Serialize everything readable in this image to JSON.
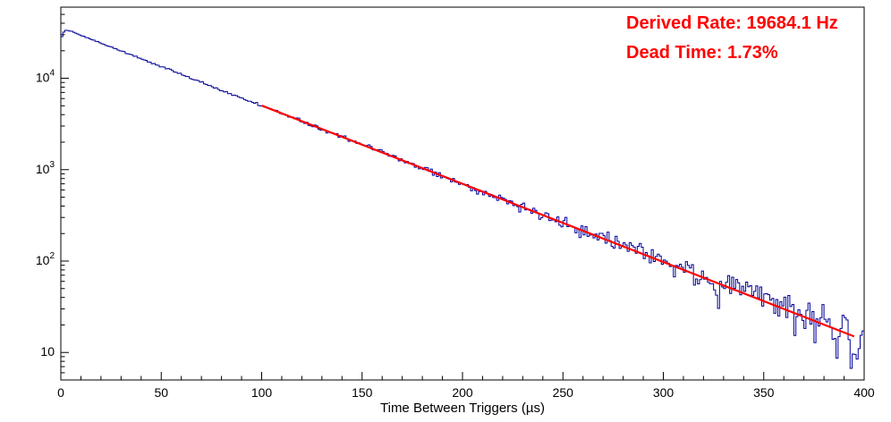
{
  "chart_data": {
    "type": "histogram",
    "title": "",
    "xlabel": "Time Between Triggers (µs)",
    "ylabel": "",
    "x_scale": "linear",
    "y_scale": "log",
    "xlim": [
      0,
      400
    ],
    "ylim": [
      5,
      60000
    ],
    "x_ticks": [
      0,
      50,
      100,
      150,
      200,
      250,
      300,
      350,
      400
    ],
    "x_minor_tick_step": 10,
    "y_ticks": [
      10,
      100,
      1000,
      10000
    ],
    "grid": false,
    "legend": false,
    "histogram": {
      "color": "#000099",
      "bin_width_us": 1,
      "model": "counts(t) = amplitude * exp(-decay_rate * t)",
      "amplitude": 36000,
      "decay_rate_per_us": 0.0196841,
      "turn_on_bins": [
        0.8,
        0.92,
        0.98
      ],
      "sampled_points": {
        "x": [
          0,
          25,
          50,
          75,
          100,
          125,
          150,
          175,
          200,
          225,
          250,
          275,
          300,
          325,
          350,
          375,
          400
        ],
        "y": [
          36000,
          22000,
          13450,
          8220,
          5030,
          3075,
          1880,
          1150,
          702,
          429,
          262,
          160,
          98,
          60,
          37,
          22,
          14
        ]
      }
    },
    "fit": {
      "color": "#ff0000",
      "shape": "exponential (straight line on log scale)",
      "x_range": [
        100,
        395
      ],
      "y_start": 5030,
      "y_end": 15
    },
    "annotations": {
      "derived_rate": "Derived Rate: 19684.1 Hz",
      "dead_time": "Dead Time: 1.73%",
      "color": "#ff0000"
    }
  }
}
